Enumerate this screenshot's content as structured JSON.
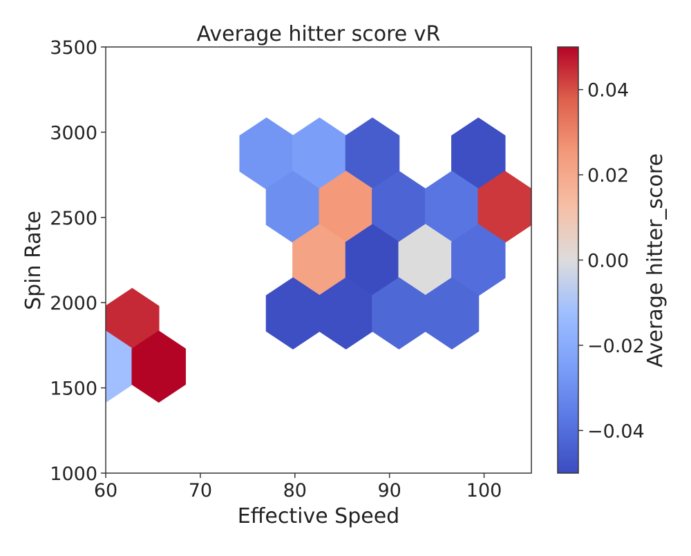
{
  "chart_data": {
    "type": "heatmap",
    "subtype": "hexbin",
    "title": "Average hitter score vR",
    "xlabel": "Effective Speed",
    "ylabel": "Spin Rate",
    "xlim": [
      60,
      105
    ],
    "ylim": [
      1000,
      3500
    ],
    "x_ticks": [
      60,
      70,
      80,
      90,
      100
    ],
    "y_ticks": [
      1000,
      1500,
      2000,
      2500,
      3000,
      3500
    ],
    "grid": false,
    "colormap": "coolwarm",
    "colorbar": {
      "label": "Average hitter_score",
      "min": -0.05,
      "max": 0.05,
      "ticks": [
        -0.04,
        -0.02,
        0.0,
        0.02,
        0.04
      ],
      "tick_labels": [
        "−0.04",
        "−0.02",
        "0.00",
        "0.02",
        "0.04"
      ]
    },
    "cells": [
      {
        "x": 62.8,
        "y": 1875,
        "value": 0.045
      },
      {
        "x": 60.0,
        "y": 1625,
        "value": -0.012
      },
      {
        "x": 65.6,
        "y": 1625,
        "value": 0.05
      },
      {
        "x": 77.0,
        "y": 2875,
        "value": -0.028
      },
      {
        "x": 82.6,
        "y": 2875,
        "value": -0.025
      },
      {
        "x": 88.2,
        "y": 2875,
        "value": -0.045
      },
      {
        "x": 99.4,
        "y": 2875,
        "value": -0.049
      },
      {
        "x": 79.8,
        "y": 2562,
        "value": -0.03
      },
      {
        "x": 85.4,
        "y": 2562,
        "value": 0.025
      },
      {
        "x": 91.0,
        "y": 2562,
        "value": -0.043
      },
      {
        "x": 96.6,
        "y": 2562,
        "value": -0.038
      },
      {
        "x": 102.2,
        "y": 2562,
        "value": 0.043
      },
      {
        "x": 82.6,
        "y": 2250,
        "value": 0.022
      },
      {
        "x": 88.2,
        "y": 2250,
        "value": -0.05
      },
      {
        "x": 93.8,
        "y": 2250,
        "value": 0.0
      },
      {
        "x": 99.4,
        "y": 2250,
        "value": -0.04
      },
      {
        "x": 79.8,
        "y": 1937,
        "value": -0.049
      },
      {
        "x": 85.4,
        "y": 1937,
        "value": -0.049
      },
      {
        "x": 91.0,
        "y": 1937,
        "value": -0.042
      },
      {
        "x": 96.6,
        "y": 1937,
        "value": -0.042
      }
    ]
  }
}
